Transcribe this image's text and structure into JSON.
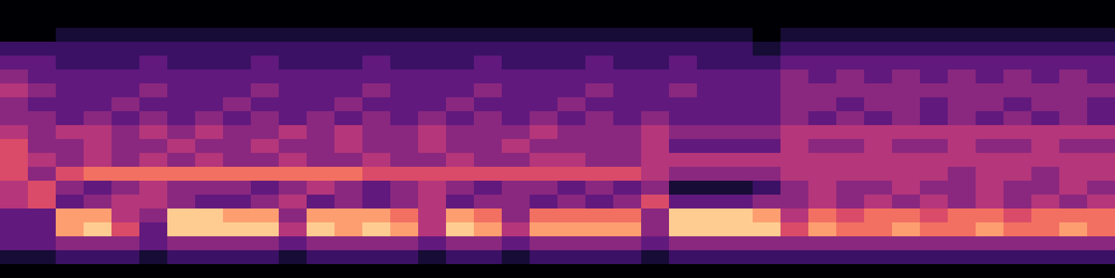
{
  "chart_data": {
    "type": "heatmap",
    "x": [
      0,
      1,
      2,
      3,
      4,
      5,
      6,
      7,
      8,
      9,
      10,
      11,
      12,
      13,
      14,
      15,
      16,
      17,
      18,
      19,
      20,
      21,
      22,
      23,
      24,
      25,
      26,
      27,
      28,
      29,
      30,
      31,
      32,
      33,
      34,
      35,
      36,
      37,
      38,
      39
    ],
    "y": [
      0,
      1,
      2,
      3,
      4,
      5,
      6,
      7,
      8,
      9,
      10,
      11,
      12,
      13,
      14,
      15,
      16,
      17,
      18,
      19
    ],
    "cells": [
      [
        0,
        0,
        0,
        0,
        0,
        0,
        0,
        0,
        0,
        0,
        0,
        0,
        0,
        0,
        0,
        0,
        0,
        0,
        0,
        0,
        0,
        0,
        0,
        0,
        0,
        0,
        0,
        0,
        0,
        0,
        0,
        0,
        0,
        0,
        0,
        0,
        0,
        0,
        0,
        0
      ],
      [
        1,
        1,
        2,
        2,
        2,
        1,
        2,
        2,
        2,
        2,
        1,
        2,
        2,
        2,
        2,
        1,
        2,
        2,
        1,
        2,
        2,
        2,
        2,
        1,
        2,
        2,
        2,
        2,
        2,
        2,
        2,
        2,
        2,
        2,
        2,
        2,
        2,
        2,
        2,
        2
      ],
      [
        3,
        3,
        4,
        4,
        4,
        3,
        4,
        4,
        4,
        4,
        3,
        4,
        4,
        4,
        4,
        3,
        4,
        4,
        3,
        4,
        4,
        4,
        4,
        3,
        4,
        4,
        4,
        4,
        4,
        4,
        4,
        4,
        4,
        4,
        4,
        4,
        4,
        4,
        4,
        4
      ],
      [
        3,
        3,
        8,
        9,
        6,
        3,
        9,
        9,
        9,
        9,
        5,
        9,
        8,
        9,
        8,
        5,
        9,
        8,
        5,
        8,
        8,
        8,
        8,
        4,
        9,
        9,
        9,
        9,
        6,
        8,
        7,
        7,
        8,
        7,
        7,
        8,
        7,
        7,
        8,
        7
      ],
      [
        3,
        3,
        8,
        8,
        5,
        4,
        9,
        9,
        8,
        8,
        4,
        8,
        8,
        8,
        7,
        5,
        8,
        7,
        4,
        7,
        7,
        7,
        7,
        4,
        9,
        9,
        9,
        8,
        5,
        7,
        6,
        7,
        7,
        6,
        7,
        7,
        6,
        7,
        7,
        7
      ],
      [
        5,
        6,
        3,
        4,
        5,
        5,
        4,
        3,
        3,
        4,
        5,
        3,
        4,
        3,
        4,
        5,
        3,
        4,
        4,
        3,
        4,
        3,
        4,
        6,
        3,
        3,
        3,
        4,
        4,
        5,
        4,
        5,
        4,
        5,
        4,
        5,
        4,
        5,
        4,
        5
      ],
      [
        5,
        6,
        4,
        3,
        4,
        5,
        4,
        4,
        4,
        3,
        4,
        5,
        4,
        3,
        4,
        5,
        4,
        3,
        4,
        4,
        3,
        4,
        3,
        4,
        1,
        1,
        1,
        2,
        4,
        5,
        4,
        4,
        5,
        4,
        4,
        5,
        4,
        4,
        5,
        4
      ],
      [
        6,
        4,
        6,
        7,
        7,
        7,
        7,
        7,
        7,
        7,
        7,
        7,
        7,
        6,
        6,
        6,
        6,
        6,
        6,
        6,
        6,
        6,
        6,
        5,
        4,
        4,
        4,
        4,
        5,
        5,
        5,
        5,
        5,
        5,
        4,
        5,
        5,
        4,
        5,
        5
      ],
      [
        6,
        5,
        4,
        5,
        4,
        5,
        4,
        5,
        4,
        4,
        5,
        4,
        4,
        5,
        4,
        4,
        5,
        4,
        4,
        5,
        5,
        4,
        4,
        5,
        5,
        5,
        5,
        5,
        5,
        5,
        5,
        5,
        5,
        5,
        5,
        5,
        5,
        5,
        5,
        5
      ],
      [
        6,
        4,
        4,
        5,
        4,
        4,
        5,
        4,
        4,
        5,
        4,
        4,
        5,
        4,
        4,
        5,
        4,
        4,
        5,
        4,
        4,
        4,
        4,
        5,
        3,
        3,
        3,
        3,
        5,
        4,
        4,
        5,
        4,
        4,
        5,
        4,
        4,
        5,
        4,
        4
      ],
      [
        5,
        4,
        5,
        5,
        4,
        5,
        4,
        5,
        4,
        4,
        5,
        4,
        5,
        4,
        4,
        5,
        4,
        4,
        4,
        5,
        4,
        4,
        4,
        5,
        4,
        4,
        4,
        4,
        5,
        5,
        5,
        5,
        5,
        5,
        5,
        5,
        5,
        5,
        5,
        5
      ],
      [
        4,
        4,
        3,
        4,
        3,
        4,
        3,
        4,
        3,
        4,
        3,
        4,
        3,
        4,
        3,
        4,
        3,
        4,
        3,
        4,
        3,
        4,
        3,
        4,
        3,
        3,
        3,
        3,
        4,
        3,
        4,
        3,
        4,
        3,
        4,
        3,
        4,
        3,
        4,
        3
      ],
      [
        4,
        3,
        3,
        3,
        4,
        3,
        3,
        3,
        4,
        3,
        3,
        3,
        4,
        3,
        3,
        3,
        4,
        3,
        3,
        3,
        4,
        3,
        3,
        3,
        3,
        3,
        3,
        3,
        4,
        4,
        3,
        4,
        4,
        3,
        4,
        4,
        3,
        4,
        4,
        3
      ],
      [
        5,
        4,
        3,
        3,
        3,
        4,
        3,
        3,
        3,
        4,
        3,
        3,
        3,
        4,
        3,
        3,
        3,
        4,
        3,
        3,
        3,
        4,
        3,
        3,
        4,
        3,
        3,
        3,
        4,
        4,
        4,
        4,
        4,
        4,
        4,
        4,
        4,
        4,
        4,
        4
      ],
      [
        4,
        3,
        3,
        3,
        3,
        3,
        3,
        3,
        3,
        3,
        3,
        3,
        3,
        3,
        3,
        3,
        3,
        3,
        3,
        3,
        3,
        3,
        3,
        3,
        3,
        3,
        3,
        3,
        4,
        3,
        4,
        3,
        4,
        3,
        4,
        3,
        4,
        3,
        4,
        3
      ],
      [
        3,
        3,
        2,
        2,
        2,
        3,
        2,
        2,
        2,
        3,
        2,
        2,
        2,
        3,
        2,
        2,
        2,
        3,
        2,
        2,
        2,
        3,
        2,
        2,
        3,
        2,
        2,
        2,
        3,
        3,
        3,
        3,
        3,
        3,
        3,
        3,
        3,
        3,
        3,
        3
      ],
      [
        2,
        2,
        2,
        2,
        2,
        2,
        2,
        2,
        2,
        2,
        2,
        2,
        2,
        2,
        2,
        2,
        2,
        2,
        2,
        2,
        2,
        2,
        2,
        2,
        2,
        2,
        2,
        1,
        2,
        2,
        2,
        2,
        2,
        2,
        2,
        2,
        2,
        2,
        2,
        2
      ],
      [
        0,
        0,
        1,
        1,
        1,
        1,
        1,
        1,
        1,
        1,
        1,
        1,
        1,
        1,
        1,
        1,
        1,
        1,
        1,
        1,
        1,
        1,
        1,
        1,
        1,
        1,
        1,
        0,
        1,
        1,
        1,
        1,
        1,
        1,
        1,
        1,
        1,
        1,
        1,
        1
      ],
      [
        0,
        0,
        0,
        0,
        0,
        0,
        0,
        0,
        0,
        0,
        0,
        0,
        0,
        0,
        0,
        0,
        0,
        0,
        0,
        0,
        0,
        0,
        0,
        0,
        0,
        0,
        0,
        0,
        0,
        0,
        0,
        0,
        0,
        0,
        0,
        0,
        0,
        0,
        0,
        0
      ],
      [
        0,
        0,
        0,
        0,
        0,
        0,
        0,
        0,
        0,
        0,
        0,
        0,
        0,
        0,
        0,
        0,
        0,
        0,
        0,
        0,
        0,
        0,
        0,
        0,
        0,
        0,
        0,
        0,
        0,
        0,
        0,
        0,
        0,
        0,
        0,
        0,
        0,
        0,
        0,
        0
      ]
    ],
    "zlim": [
      0,
      10
    ],
    "xlim": [
      -0.5,
      39.5
    ],
    "ylim": [
      -0.5,
      19.5
    ],
    "tick_labels": false
  }
}
